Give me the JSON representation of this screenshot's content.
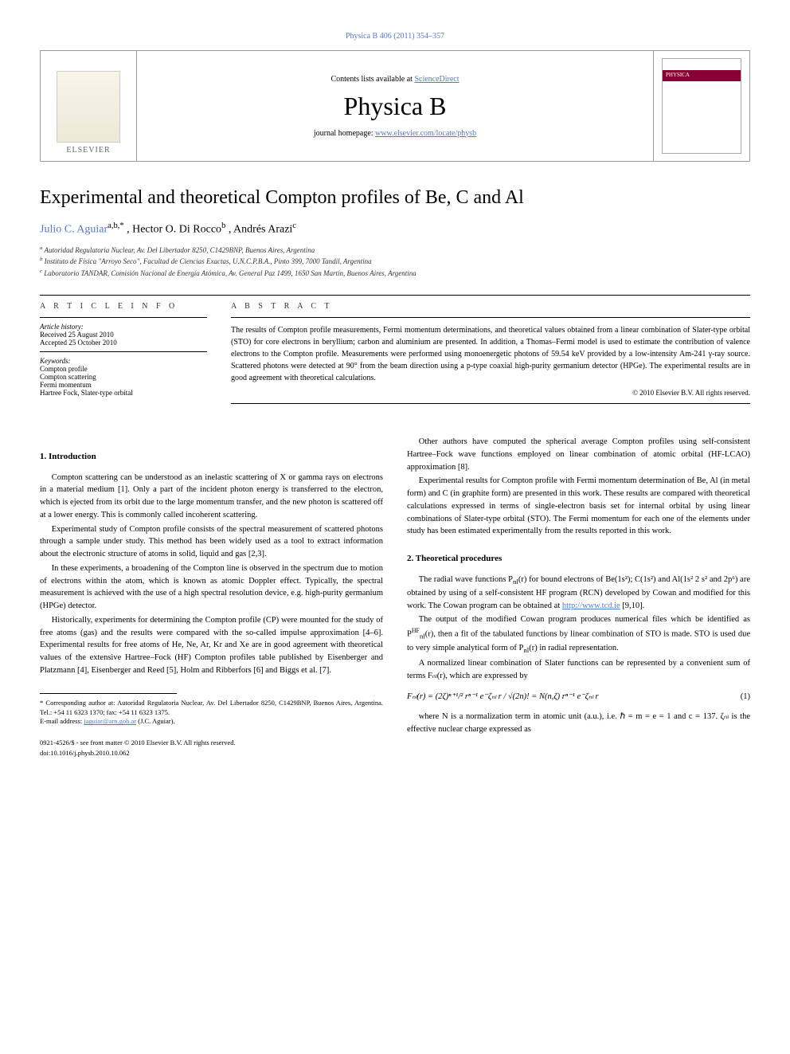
{
  "top_link": "Physica B 406 (2011) 354–357",
  "header": {
    "contents_prefix": "Contents lists available at ",
    "contents_link": "ScienceDirect",
    "journal": "Physica B",
    "homepage_prefix": "journal homepage: ",
    "homepage_link": "www.elsevier.com/locate/physb",
    "publisher": "ELSEVIER",
    "cover_label": "PHYSICA"
  },
  "title": "Experimental and theoretical Compton profiles of Be, C and Al",
  "authors_html": "Julio C. Aguiar",
  "author1": "Julio C. Aguiar",
  "author1_sup": "a,b,*",
  "author2": ", Hector O. Di Rocco",
  "author2_sup": "b",
  "author3": ", Andrés Arazi",
  "author3_sup": "c",
  "affiliations": {
    "a": "Autoridad Regulatoria Nuclear, Av. Del Libertador 8250, C1429BNP, Buenos Aires, Argentina",
    "b": "Instituto de Física \"Arroyo Seco\", Facultad de Ciencias Exactas, U.N.C.P.B.A., Pinto 399, 7000 Tandil, Argentina",
    "c": "Laboratorio TANDAR, Comisión Nacional de Energía Atómica, Av. General Paz 1499, 1650 San Martín, Buenos Aires, Argentina"
  },
  "article_info": {
    "head": "A R T I C L E   I N F O",
    "history_label": "Article history:",
    "received": "Received 25 August 2010",
    "accepted": "Accepted 25 October 2010",
    "keywords_label": "Keywords:",
    "keywords": [
      "Compton profile",
      "Compton scattering",
      "Fermi momentum",
      "Hartree Fock, Slater-type orbital"
    ]
  },
  "abstract": {
    "head": "A B S T R A C T",
    "text": "The results of Compton profile measurements, Fermi momentum determinations, and theoretical values obtained from a linear combination of Slater-type orbital (STO) for core electrons in beryllium; carbon and aluminium are presented. In addition, a Thomas–Fermi model is used to estimate the contribution of valence electrons to the Compton profile. Measurements were performed using monoenergetic photons of 59.54 keV provided by a low-intensity Am-241 γ-ray source. Scattered photons were detected at 90° from the beam direction using a p-type coaxial high-purity germanium detector (HPGe). The experimental results are in good agreement with theoretical calculations.",
    "copyright": "© 2010 Elsevier B.V. All rights reserved."
  },
  "sections": {
    "s1_title": "1.  Introduction",
    "s1_p1": "Compton scattering can be understood as an inelastic scattering of X or gamma rays on electrons in a material medium [1]. Only a part of the incident photon energy is transferred to the electron, which is ejected from its orbit due to the large momentum transfer, and the new photon is scattered off at a lower energy. This is commonly called incoherent scattering.",
    "s1_p2": "Experimental study of Compton profile consists of the spectral measurement of scattered photons through a sample under study. This method has been widely used as a tool to extract information about the electronic structure of atoms in solid, liquid and gas [2,3].",
    "s1_p3": "In these experiments, a broadening of the Compton line is observed in the spectrum due to motion of electrons within the atom, which is known as atomic Doppler effect. Typically, the spectral measurement is achieved with the use of a high spectral resolution device, e.g. high-purity germanium (HPGe) detector.",
    "s1_p4": "Historically, experiments for determining the Compton profile (CP) were mounted for the study of free atoms (gas) and the results were compared with the so-called impulse approximation [4–6]. Experimental results for free atoms of He, Ne, Ar, Kr and Xe are in good agreement with theoretical values of the extensive Hartree–Fock (HF) Compton profiles table published by Eisenberger and Platzmann [4], Eisenberger and Reed [5], Holm and Ribberfors [6] and Biggs et al. [7].",
    "s1_p5": "Other authors have computed the spherical average Compton profiles using self-consistent Hartree–Fock wave functions employed on linear combination of atomic orbital (HF-LCAO) approximation [8].",
    "s1_p6": "Experimental results for Compton profile with Fermi momentum determination of Be, Al (in metal form) and C (in graphite form) are presented in this work. These results are compared with theoretical calculations expressed in terms of single-electron basis set for internal orbital by using linear combinations of Slater-type orbital (STO). The Fermi momentum for each one of the elements under study has been estimated experimentally from the results reported in this work.",
    "s2_title": "2.  Theoretical procedures",
    "s2_p1a": "The radial wave functions P",
    "s2_p1b": "(r) for bound electrons of Be(1s²); C(1s²) and Al(1s² 2 s² and 2p⁶) are obtained by using of a self-consistent HF program (RCN) developed by Cowan and modified for this work. The Cowan program can be obtained at ",
    "s2_p1_link": "http://www.tcd.ie",
    "s2_p1c": " [9,10].",
    "s2_p2a": "The output of the modified Cowan program produces numerical files which be identified as P",
    "s2_p2b": "(r), then a fit of the tabulated functions by linear combination of STO is made. STO is used due to very simple analytical form of P",
    "s2_p2c": "(r) in radial representation.",
    "s2_p3": "A normalized linear combination of Slater functions can be represented by a convenient sum of terms Fₙₗ(r), which are expressed by",
    "eq1": "Fₙₗ(r) = (2ζ)ⁿ⁺¹/² rⁿ⁻¹ e⁻ζₙₗ r / √(2n)!  = N(n,ζ) rⁿ⁻¹ e⁻ζₙₗ r",
    "eq1_num": "(1)",
    "s2_p4": "where N is a normalization term in atomic unit (a.u.), i.e. ℏ = m = e = 1 and c = 137. ζₙₗ is the effective nuclear charge expressed as"
  },
  "footnotes": {
    "corr": "* Corresponding author at: Autoridad Regulatoria Nuclear, Av. Del Libertador 8250, C1429BNP, Buenos Aires, Argentina. Tel.: +54 11 6323 1370; fax: +54 11 6323 1375.",
    "email_label": "E-mail address: ",
    "email": "jaguiar@arn.gob.ar",
    "email_suffix": " (J.C. Aguiar)."
  },
  "bottom": {
    "issn": "0921-4526/$ - see front matter © 2010 Elsevier B.V. All rights reserved.",
    "doi": "doi:10.1016/j.physb.2010.10.062"
  },
  "colors": {
    "link": "#5577cc",
    "rule": "#000",
    "cover_band": "#8b0033"
  }
}
